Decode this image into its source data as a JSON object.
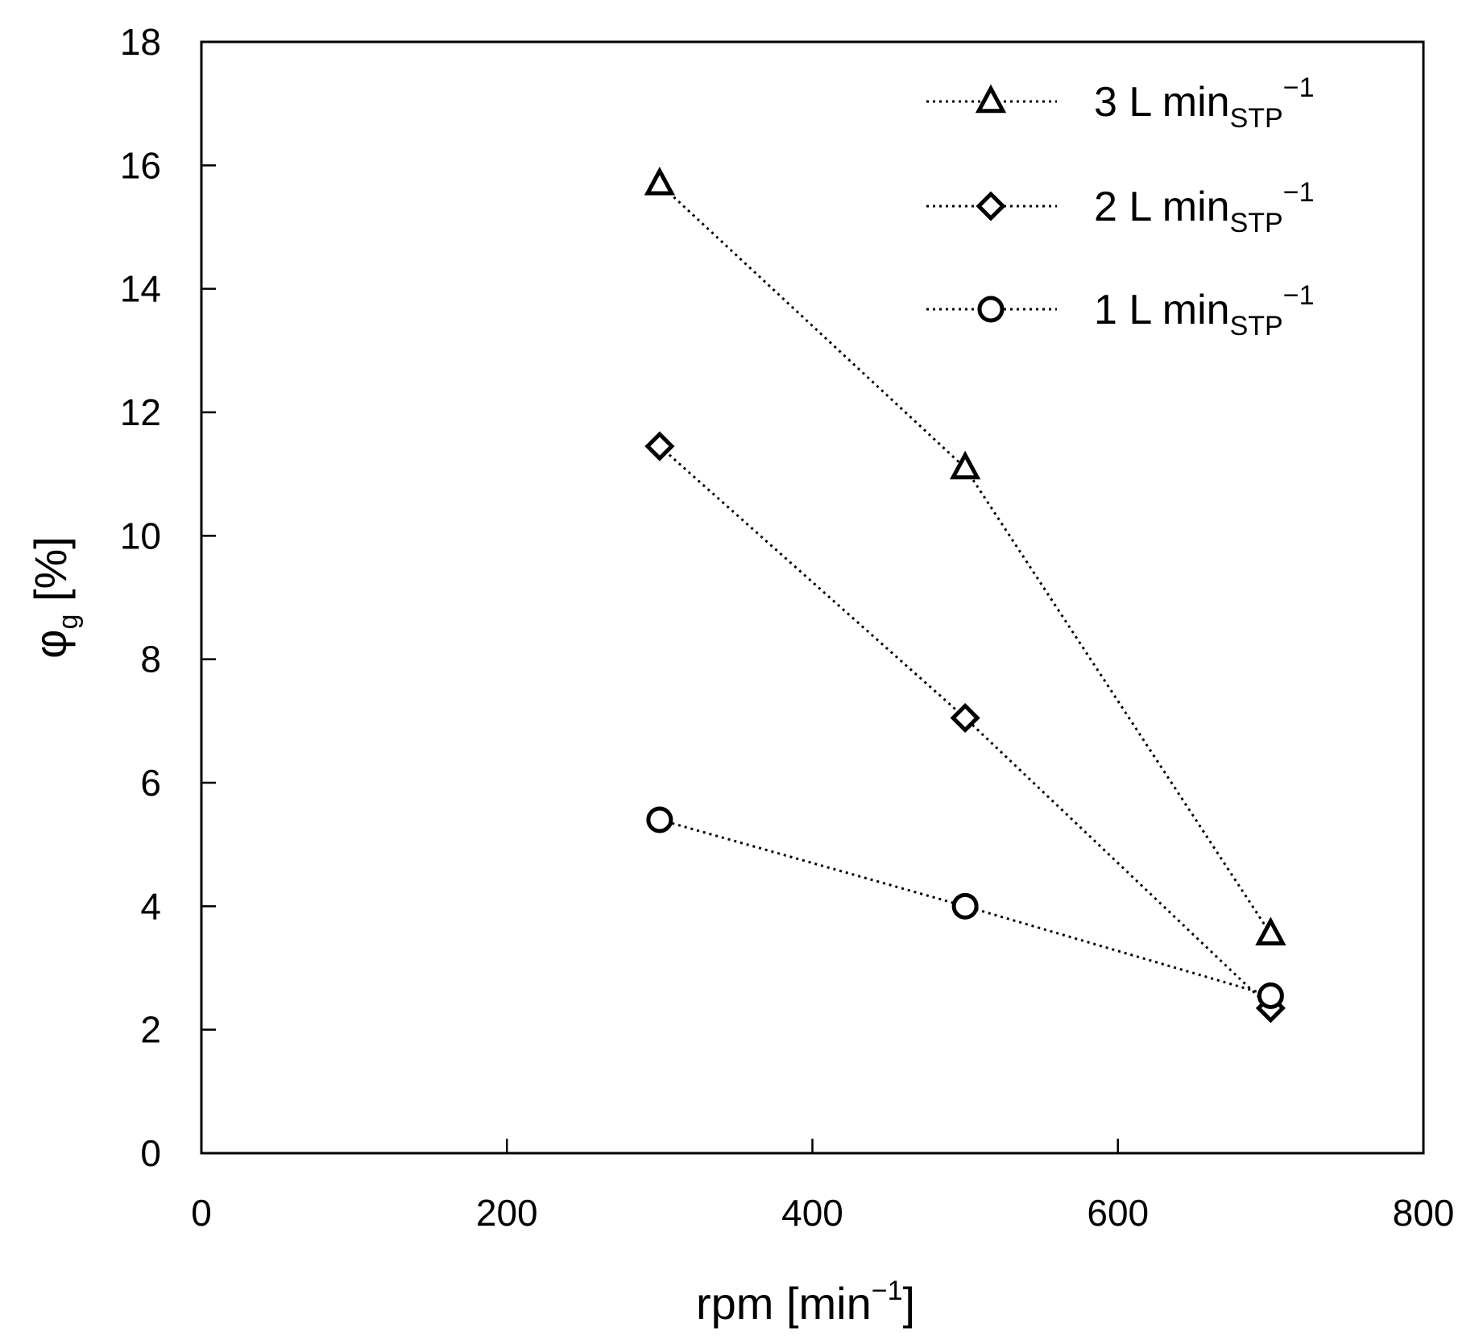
{
  "chart_data": {
    "type": "line",
    "xlabel": {
      "main": "rpm [min",
      "sup": "−1",
      "end": "]"
    },
    "ylabel": {
      "main": "φ",
      "sub": "g",
      "end": " [%]"
    },
    "xlim": [
      0,
      800
    ],
    "ylim": [
      0,
      18
    ],
    "xticks": [
      "0",
      "200",
      "400",
      "600",
      "800"
    ],
    "yticks": [
      "0",
      "2",
      "4",
      "6",
      "8",
      "10",
      "12",
      "14",
      "16",
      "18"
    ],
    "grid": false,
    "legend_position": "top-right",
    "series": [
      {
        "name": "3 L min",
        "sub": "STP",
        "sup": "−1",
        "marker": "triangle",
        "x": [
          300,
          500,
          700
        ],
        "y": [
          15.7,
          11.1,
          3.55
        ]
      },
      {
        "name": "2 L min",
        "sub": "STP",
        "sup": "−1",
        "marker": "diamond",
        "x": [
          300,
          500,
          700
        ],
        "y": [
          11.45,
          7.05,
          2.35
        ]
      },
      {
        "name": "1 L min",
        "sub": "STP",
        "sup": "−1",
        "marker": "circle",
        "x": [
          300,
          500,
          700
        ],
        "y": [
          5.4,
          4.0,
          2.55
        ]
      }
    ]
  }
}
